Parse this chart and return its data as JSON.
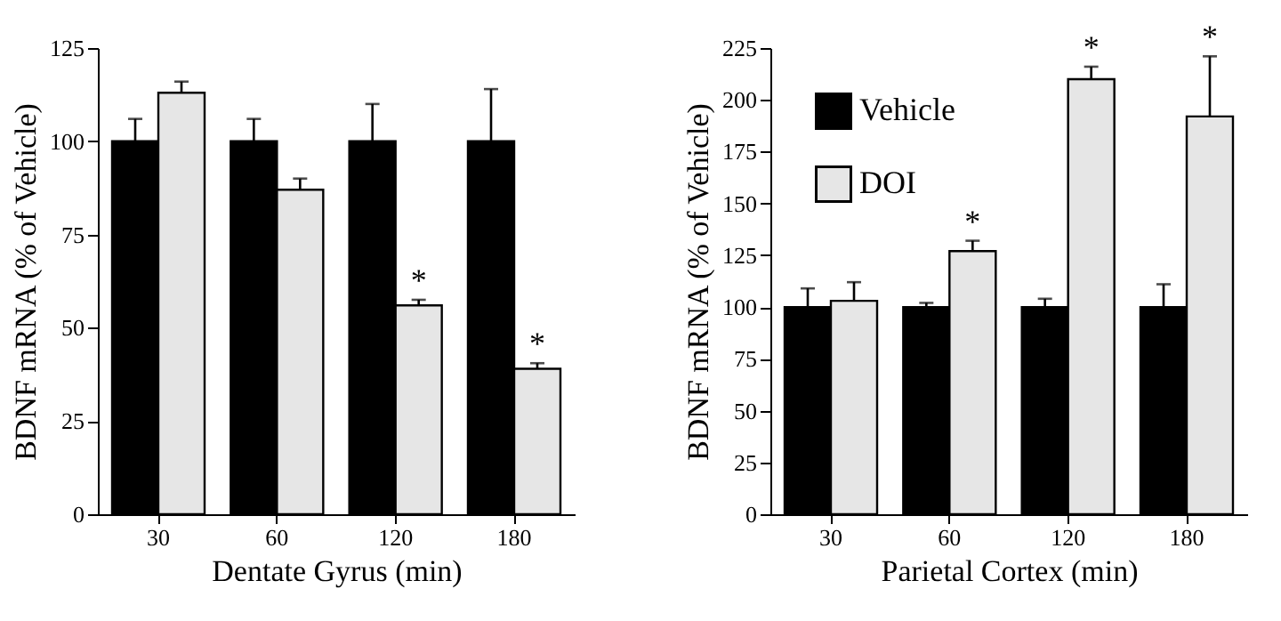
{
  "chart_data": [
    {
      "type": "bar",
      "xlabel": "Dentate Gyrus (min)",
      "ylabel": "BDNF mRNA (% of Vehicle)",
      "categories": [
        "30",
        "60",
        "120",
        "180"
      ],
      "series": [
        {
          "color": "#000000",
          "values": [
            100,
            100,
            100,
            100
          ],
          "errors": [
            [
              100,
              106
            ],
            [
              100,
              106
            ],
            [
              100,
              110
            ],
            [
              100,
              114
            ]
          ]
        },
        {
          "color": "#e6e6e6",
          "values": [
            113,
            87,
            56,
            39
          ],
          "errors": [
            [
              113,
              116
            ],
            [
              87,
              90
            ],
            [
              56,
              57.5
            ],
            [
              39,
              40.5
            ]
          ]
        }
      ],
      "ylim": [
        0,
        125
      ],
      "yticks": [
        0,
        25,
        50,
        75,
        100,
        125
      ],
      "grid": false,
      "legend": false,
      "annotations": [
        {
          "text": "*",
          "x": "120",
          "y": 56
        },
        {
          "text": "*",
          "x": "180",
          "y": 39
        }
      ]
    },
    {
      "type": "bar",
      "xlabel": "Parietal Cortex (min)",
      "ylabel": "BDNF mRNA (% of Vehicle)",
      "categories": [
        "30",
        "60",
        "120",
        "180"
      ],
      "series": [
        {
          "name": "Vehicle",
          "color": "#000000",
          "values": [
            100,
            100,
            100,
            100
          ],
          "errors": [
            [
              100,
              109
            ],
            [
              100,
              102
            ],
            [
              100,
              104
            ],
            [
              100,
              111
            ]
          ]
        },
        {
          "name": "DOI",
          "color": "#e6e6e6",
          "values": [
            103,
            127,
            210,
            192
          ],
          "errors": [
            [
              103,
              112
            ],
            [
              127,
              132
            ],
            [
              210,
              216
            ],
            [
              192,
              221
            ]
          ]
        }
      ],
      "ylim": [
        0,
        225
      ],
      "yticks": [
        0,
        25,
        50,
        75,
        100,
        125,
        150,
        175,
        200,
        225
      ],
      "grid": false,
      "legend": "top left",
      "annotations": [
        {
          "text": "*",
          "x": "60",
          "y": 127
        },
        {
          "text": "*",
          "x": "120",
          "y": 210
        },
        {
          "text": "*",
          "x": "180",
          "y": 192
        }
      ]
    }
  ]
}
